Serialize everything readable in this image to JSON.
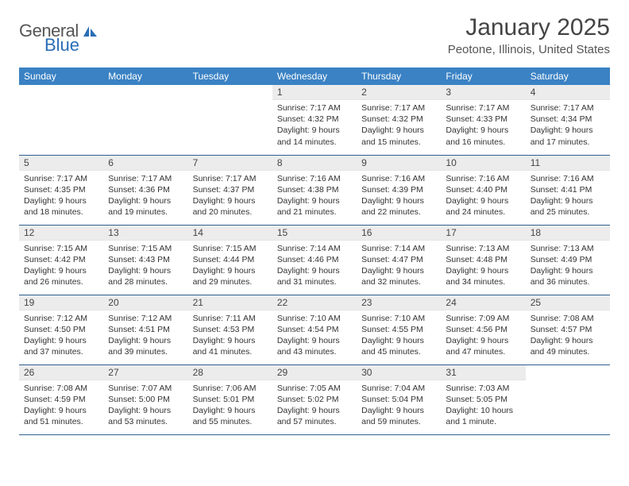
{
  "logo": {
    "text1": "General",
    "text2": "Blue"
  },
  "title": {
    "month": "January 2025",
    "location": "Peotone, Illinois, United States"
  },
  "headers": [
    "Sunday",
    "Monday",
    "Tuesday",
    "Wednesday",
    "Thursday",
    "Friday",
    "Saturday"
  ],
  "colors": {
    "header_bg": "#3a82c4",
    "header_fg": "#ffffff",
    "row_sep": "#2f5f8f",
    "daynum_bg": "#ececec",
    "logo_blue": "#2a6db6"
  },
  "weeks": [
    [
      null,
      null,
      null,
      {
        "n": "1",
        "sunrise": "7:17 AM",
        "sunset": "4:32 PM",
        "day_h": "9",
        "day_m": "14 minutes"
      },
      {
        "n": "2",
        "sunrise": "7:17 AM",
        "sunset": "4:32 PM",
        "day_h": "9",
        "day_m": "15 minutes"
      },
      {
        "n": "3",
        "sunrise": "7:17 AM",
        "sunset": "4:33 PM",
        "day_h": "9",
        "day_m": "16 minutes"
      },
      {
        "n": "4",
        "sunrise": "7:17 AM",
        "sunset": "4:34 PM",
        "day_h": "9",
        "day_m": "17 minutes"
      }
    ],
    [
      {
        "n": "5",
        "sunrise": "7:17 AM",
        "sunset": "4:35 PM",
        "day_h": "9",
        "day_m": "18 minutes"
      },
      {
        "n": "6",
        "sunrise": "7:17 AM",
        "sunset": "4:36 PM",
        "day_h": "9",
        "day_m": "19 minutes"
      },
      {
        "n": "7",
        "sunrise": "7:17 AM",
        "sunset": "4:37 PM",
        "day_h": "9",
        "day_m": "20 minutes"
      },
      {
        "n": "8",
        "sunrise": "7:16 AM",
        "sunset": "4:38 PM",
        "day_h": "9",
        "day_m": "21 minutes"
      },
      {
        "n": "9",
        "sunrise": "7:16 AM",
        "sunset": "4:39 PM",
        "day_h": "9",
        "day_m": "22 minutes"
      },
      {
        "n": "10",
        "sunrise": "7:16 AM",
        "sunset": "4:40 PM",
        "day_h": "9",
        "day_m": "24 minutes"
      },
      {
        "n": "11",
        "sunrise": "7:16 AM",
        "sunset": "4:41 PM",
        "day_h": "9",
        "day_m": "25 minutes"
      }
    ],
    [
      {
        "n": "12",
        "sunrise": "7:15 AM",
        "sunset": "4:42 PM",
        "day_h": "9",
        "day_m": "26 minutes"
      },
      {
        "n": "13",
        "sunrise": "7:15 AM",
        "sunset": "4:43 PM",
        "day_h": "9",
        "day_m": "28 minutes"
      },
      {
        "n": "14",
        "sunrise": "7:15 AM",
        "sunset": "4:44 PM",
        "day_h": "9",
        "day_m": "29 minutes"
      },
      {
        "n": "15",
        "sunrise": "7:14 AM",
        "sunset": "4:46 PM",
        "day_h": "9",
        "day_m": "31 minutes"
      },
      {
        "n": "16",
        "sunrise": "7:14 AM",
        "sunset": "4:47 PM",
        "day_h": "9",
        "day_m": "32 minutes"
      },
      {
        "n": "17",
        "sunrise": "7:13 AM",
        "sunset": "4:48 PM",
        "day_h": "9",
        "day_m": "34 minutes"
      },
      {
        "n": "18",
        "sunrise": "7:13 AM",
        "sunset": "4:49 PM",
        "day_h": "9",
        "day_m": "36 minutes"
      }
    ],
    [
      {
        "n": "19",
        "sunrise": "7:12 AM",
        "sunset": "4:50 PM",
        "day_h": "9",
        "day_m": "37 minutes"
      },
      {
        "n": "20",
        "sunrise": "7:12 AM",
        "sunset": "4:51 PM",
        "day_h": "9",
        "day_m": "39 minutes"
      },
      {
        "n": "21",
        "sunrise": "7:11 AM",
        "sunset": "4:53 PM",
        "day_h": "9",
        "day_m": "41 minutes"
      },
      {
        "n": "22",
        "sunrise": "7:10 AM",
        "sunset": "4:54 PM",
        "day_h": "9",
        "day_m": "43 minutes"
      },
      {
        "n": "23",
        "sunrise": "7:10 AM",
        "sunset": "4:55 PM",
        "day_h": "9",
        "day_m": "45 minutes"
      },
      {
        "n": "24",
        "sunrise": "7:09 AM",
        "sunset": "4:56 PM",
        "day_h": "9",
        "day_m": "47 minutes"
      },
      {
        "n": "25",
        "sunrise": "7:08 AM",
        "sunset": "4:57 PM",
        "day_h": "9",
        "day_m": "49 minutes"
      }
    ],
    [
      {
        "n": "26",
        "sunrise": "7:08 AM",
        "sunset": "4:59 PM",
        "day_h": "9",
        "day_m": "51 minutes"
      },
      {
        "n": "27",
        "sunrise": "7:07 AM",
        "sunset": "5:00 PM",
        "day_h": "9",
        "day_m": "53 minutes"
      },
      {
        "n": "28",
        "sunrise": "7:06 AM",
        "sunset": "5:01 PM",
        "day_h": "9",
        "day_m": "55 minutes"
      },
      {
        "n": "29",
        "sunrise": "7:05 AM",
        "sunset": "5:02 PM",
        "day_h": "9",
        "day_m": "57 minutes"
      },
      {
        "n": "30",
        "sunrise": "7:04 AM",
        "sunset": "5:04 PM",
        "day_h": "9",
        "day_m": "59 minutes"
      },
      {
        "n": "31",
        "sunrise": "7:03 AM",
        "sunset": "5:05 PM",
        "day_h": "10",
        "day_m": "1 minute"
      },
      null
    ]
  ],
  "labels": {
    "sunrise": "Sunrise:",
    "sunset": "Sunset:",
    "daylight": "Daylight:",
    "hours": "hours",
    "and": "and"
  }
}
